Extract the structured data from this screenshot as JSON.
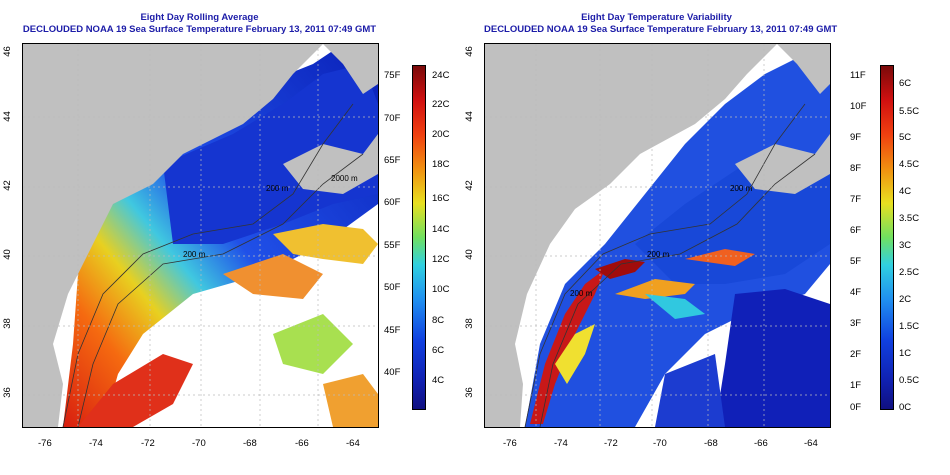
{
  "left_panel": {
    "title_line1": "Eight Day Rolling Average",
    "title_line2": "DECLOUDED NOAA 19 Sea Surface Temperature February 13, 2011 07:49 GMT",
    "colorbar_f_labels": [
      "75F",
      "70F",
      "65F",
      "60F",
      "55F",
      "50F",
      "45F",
      "40F"
    ],
    "colorbar_c_labels": [
      "24C",
      "22C",
      "20C",
      "18C",
      "16C",
      "14C",
      "12C",
      "10C",
      "8C",
      "6C",
      "4C"
    ],
    "contour_labels": [
      "200 m",
      "200 m",
      "2000 m"
    ]
  },
  "right_panel": {
    "title_line1": "Eight Day Temperature Variability",
    "title_line2": "DECLOUDED NOAA 19 Sea Surface Temperature February 13, 2011 07:49 GMT",
    "colorbar_f_labels": [
      "11F",
      "10F",
      "9F",
      "8F",
      "7F",
      "6F",
      "5F",
      "4F",
      "3F",
      "2F",
      "1F",
      "0F"
    ],
    "colorbar_c_labels": [
      "6C",
      "5.5C",
      "5C",
      "4.5C",
      "4C",
      "3.5C",
      "3C",
      "2.5C",
      "2C",
      "1.5C",
      "1C",
      "0.5C",
      "0C"
    ],
    "contour_labels": [
      "200 m",
      "200 m",
      "200 m"
    ]
  },
  "lon_labels": [
    "-76",
    "-74",
    "-72",
    "-70",
    "-68",
    "-66",
    "-64"
  ],
  "lat_labels": [
    "46",
    "44",
    "42",
    "40",
    "38",
    "36"
  ],
  "colors": {
    "title": "#1c1ca8",
    "land": "#c0c0c0",
    "ocean_cold": "#1030d0",
    "ocean_warm": "#e02010"
  }
}
